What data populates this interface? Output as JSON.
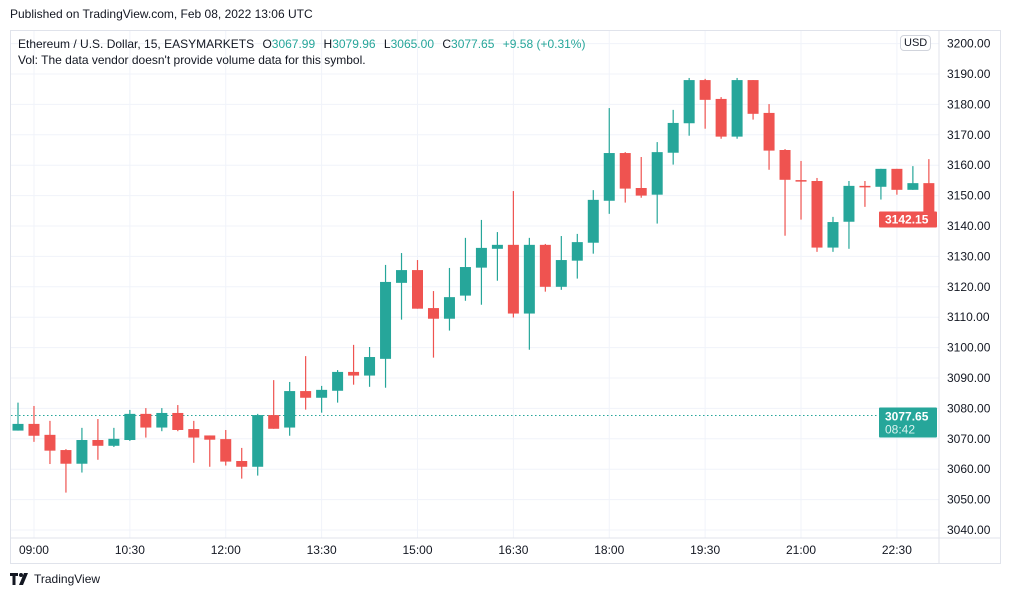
{
  "published": "Published on TradingView.com, Feb 08, 2022 13:06 UTC",
  "legend": {
    "symbol": "Ethereum / U.S. Dollar, 15, EASYMARKETS",
    "o_label": "O",
    "o": "3067.99",
    "h_label": "H",
    "h": "3079.96",
    "l_label": "L",
    "l": "3065.00",
    "c_label": "C",
    "c": "3077.65",
    "change": "+9.58 (+0.31%)",
    "vol": "Vol: The data vendor doesn't provide volume data for this symbol."
  },
  "currency": "USD",
  "footer": {
    "brand": "TradingView",
    "logo_icon": "tradingview-logo-icon"
  },
  "colors": {
    "up": "#26a69a",
    "down": "#ef5350",
    "grid": "#f0f3fa"
  },
  "chart_data": {
    "type": "candlestick",
    "interval": "15",
    "x": [
      "08:45",
      "09:00",
      "09:15",
      "09:30",
      "09:45",
      "10:00",
      "10:15",
      "10:30",
      "10:45",
      "11:00",
      "11:15",
      "11:30",
      "11:45",
      "12:00",
      "12:15",
      "12:30",
      "12:45",
      "13:00",
      "13:15",
      "13:30",
      "13:45",
      "14:00",
      "14:15",
      "14:30",
      "14:45",
      "15:00",
      "15:15",
      "15:30",
      "15:45",
      "16:00",
      "16:15",
      "16:30",
      "16:45",
      "17:00",
      "17:15",
      "17:30",
      "17:45",
      "18:00",
      "18:15",
      "18:30",
      "18:45",
      "19:00",
      "19:15",
      "19:30",
      "19:45",
      "20:00",
      "20:15",
      "20:30",
      "20:45",
      "21:00",
      "21:15",
      "21:30",
      "21:45",
      "22:00",
      "22:15",
      "22:30",
      "22:45",
      "23:00"
    ],
    "ohlc": [
      [
        3072.7,
        3081.9,
        3072.7,
        3074.9
      ],
      [
        3074.9,
        3080.8,
        3069.0,
        3071.0
      ],
      [
        3071.3,
        3075.9,
        3061.7,
        3066.1
      ],
      [
        3066.3,
        3066.6,
        3052.3,
        3061.8
      ],
      [
        3061.8,
        3073.6,
        3058.9,
        3069.6
      ],
      [
        3069.6,
        3076.5,
        3063.1,
        3067.7
      ],
      [
        3067.7,
        3073.6,
        3067.3,
        3070.0
      ],
      [
        3069.6,
        3079.5,
        3069.3,
        3078.2
      ],
      [
        3078.2,
        3080.1,
        3070.4,
        3073.7
      ],
      [
        3073.7,
        3080.1,
        3072.5,
        3078.5
      ],
      [
        3078.5,
        3081.1,
        3072.5,
        3072.9
      ],
      [
        3073.2,
        3075.9,
        3062.1,
        3070.4
      ],
      [
        3071.1,
        3071.1,
        3060.8,
        3069.7
      ],
      [
        3069.9,
        3072.9,
        3061.2,
        3062.5
      ],
      [
        3062.7,
        3067.0,
        3056.9,
        3060.8
      ],
      [
        3060.8,
        3078.2,
        3057.9,
        3077.8
      ],
      [
        3077.8,
        3089.3,
        3073.3,
        3073.3
      ],
      [
        3073.7,
        3088.7,
        3071.0,
        3085.7
      ],
      [
        3085.7,
        3097.2,
        3079.6,
        3083.5
      ],
      [
        3083.5,
        3087.4,
        3078.6,
        3086.1
      ],
      [
        3085.8,
        3092.6,
        3081.9,
        3092.0
      ],
      [
        3092.0,
        3100.9,
        3087.8,
        3090.8
      ],
      [
        3090.8,
        3100.2,
        3087.1,
        3096.9
      ],
      [
        3096.3,
        3127.2,
        3086.8,
        3121.6
      ],
      [
        3121.3,
        3131.1,
        3109.2,
        3125.5
      ],
      [
        3125.5,
        3128.8,
        3112.8,
        3112.8
      ],
      [
        3113.0,
        3118.6,
        3096.7,
        3109.5
      ],
      [
        3109.5,
        3126.2,
        3105.6,
        3116.6
      ],
      [
        3117.1,
        3136.1,
        3115.4,
        3126.5
      ],
      [
        3126.3,
        3142.0,
        3114.1,
        3132.8
      ],
      [
        3132.5,
        3138.0,
        3122.0,
        3133.8
      ],
      [
        3133.8,
        3151.5,
        3109.9,
        3111.2
      ],
      [
        3111.2,
        3136.1,
        3099.3,
        3133.8
      ],
      [
        3133.8,
        3134.1,
        3118.4,
        3120.0
      ],
      [
        3120.0,
        3136.7,
        3119.0,
        3128.8
      ],
      [
        3128.6,
        3137.4,
        3122.7,
        3134.7
      ],
      [
        3134.5,
        3151.8,
        3130.9,
        3148.6
      ],
      [
        3148.3,
        3178.8,
        3144.0,
        3164.0
      ],
      [
        3164.0,
        3164.3,
        3147.7,
        3152.3
      ],
      [
        3152.5,
        3162.7,
        3149.3,
        3150.0
      ],
      [
        3150.3,
        3167.6,
        3140.8,
        3164.3
      ],
      [
        3164.1,
        3178.2,
        3160.2,
        3173.9
      ],
      [
        3173.8,
        3188.7,
        3169.7,
        3188.0
      ],
      [
        3188.0,
        3188.4,
        3172.0,
        3181.5
      ],
      [
        3181.8,
        3182.4,
        3168.7,
        3169.4
      ],
      [
        3169.4,
        3188.7,
        3168.7,
        3188.0
      ],
      [
        3188.0,
        3188.0,
        3175.0,
        3176.9
      ],
      [
        3177.2,
        3180.1,
        3158.5,
        3164.8
      ],
      [
        3165.0,
        3165.3,
        3136.8,
        3155.2
      ],
      [
        3155.1,
        3161.4,
        3142.1,
        3154.6
      ],
      [
        3154.8,
        3155.8,
        3131.5,
        3132.9
      ],
      [
        3132.9,
        3143.0,
        3131.5,
        3141.3
      ],
      [
        3141.4,
        3154.8,
        3132.5,
        3153.2
      ],
      [
        3153.2,
        3154.8,
        3146.3,
        3152.8
      ],
      [
        3152.9,
        3158.8,
        3148.7,
        3158.8
      ],
      [
        3158.8,
        3158.8,
        3150.3,
        3151.9
      ],
      [
        3151.9,
        3159.7,
        3151.9,
        3154.1
      ],
      [
        3154.1,
        3162.0,
        3140.4,
        3142.15
      ]
    ],
    "x_tick_labels": [
      "09:00",
      "10:30",
      "12:00",
      "13:30",
      "15:00",
      "16:30",
      "18:00",
      "19:30",
      "21:00",
      "22:30"
    ],
    "y_tick_labels": [
      "3200.00",
      "3190.00",
      "3180.00",
      "3170.00",
      "3160.00",
      "3150.00",
      "3140.00",
      "3130.00",
      "3120.00",
      "3110.00",
      "3100.00",
      "3090.00",
      "3080.00",
      "3070.00",
      "3060.00",
      "3050.00",
      "3040.00"
    ],
    "y_ticks": [
      3200,
      3190,
      3180,
      3170,
      3160,
      3150,
      3140,
      3130,
      3120,
      3110,
      3100,
      3090,
      3080,
      3070,
      3060,
      3050,
      3040
    ],
    "ylim": [
      3037,
      3205
    ],
    "grid": true,
    "last_price": {
      "value": 3142.15,
      "label": "3142.15"
    },
    "marker_line": {
      "value": 3077.65,
      "label": "3077.65",
      "countdown": "08:42"
    }
  }
}
